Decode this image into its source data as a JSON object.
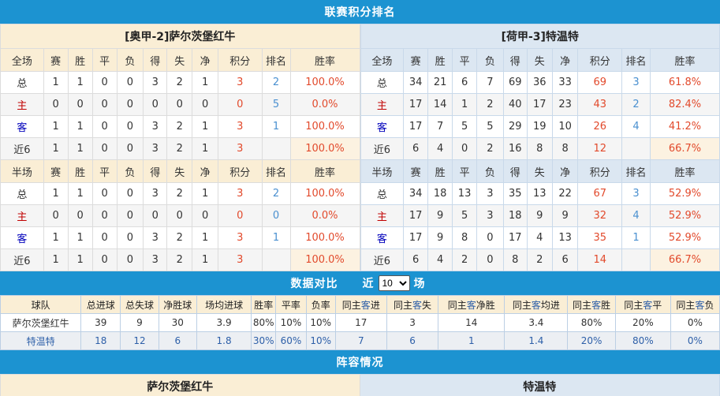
{
  "sections": {
    "ranking": "联赛积分排名"
  },
  "teams": {
    "home": {
      "title": "[奥甲-2]萨尔茨堡红牛",
      "name": "萨尔茨堡红牛",
      "league": "奥甲",
      "league_rank": "2"
    },
    "away": {
      "title": "[荷甲-3]特温特",
      "name": "特温特",
      "league": "荷甲",
      "league_rank": "3"
    }
  },
  "standings": {
    "columns": [
      "赛",
      "胜",
      "平",
      "负",
      "得",
      "失",
      "净",
      "积分",
      "排名",
      "胜率"
    ],
    "full_label": "全场",
    "half_label": "半场",
    "home": {
      "full": [
        {
          "label": "总",
          "values": [
            "1",
            "1",
            "0",
            "0",
            "3",
            "2",
            "1",
            "3",
            "2",
            "100.0%"
          ]
        },
        {
          "label": "主",
          "values": [
            "0",
            "0",
            "0",
            "0",
            "0",
            "0",
            "0",
            "0",
            "5",
            "0.0%"
          ]
        },
        {
          "label": "客",
          "values": [
            "1",
            "1",
            "0",
            "0",
            "3",
            "2",
            "1",
            "3",
            "1",
            "100.0%"
          ]
        },
        {
          "label": "近6",
          "values": [
            "1",
            "1",
            "0",
            "0",
            "3",
            "2",
            "1",
            "3",
            "",
            "100.0%"
          ]
        }
      ],
      "half": [
        {
          "label": "总",
          "values": [
            "1",
            "1",
            "0",
            "0",
            "3",
            "2",
            "1",
            "3",
            "2",
            "100.0%"
          ]
        },
        {
          "label": "主",
          "values": [
            "0",
            "0",
            "0",
            "0",
            "0",
            "0",
            "0",
            "0",
            "0",
            "0.0%"
          ]
        },
        {
          "label": "客",
          "values": [
            "1",
            "1",
            "0",
            "0",
            "3",
            "2",
            "1",
            "3",
            "1",
            "100.0%"
          ]
        },
        {
          "label": "近6",
          "values": [
            "1",
            "1",
            "0",
            "0",
            "3",
            "2",
            "1",
            "3",
            "",
            "100.0%"
          ]
        }
      ]
    },
    "away": {
      "full": [
        {
          "label": "总",
          "values": [
            "34",
            "21",
            "6",
            "7",
            "69",
            "36",
            "33",
            "69",
            "3",
            "61.8%"
          ]
        },
        {
          "label": "主",
          "values": [
            "17",
            "14",
            "1",
            "2",
            "40",
            "17",
            "23",
            "43",
            "2",
            "82.4%"
          ]
        },
        {
          "label": "客",
          "values": [
            "17",
            "7",
            "5",
            "5",
            "29",
            "19",
            "10",
            "26",
            "4",
            "41.2%"
          ]
        },
        {
          "label": "近6",
          "values": [
            "6",
            "4",
            "0",
            "2",
            "16",
            "8",
            "8",
            "12",
            "",
            "66.7%"
          ]
        }
      ],
      "half": [
        {
          "label": "总",
          "values": [
            "34",
            "18",
            "13",
            "3",
            "35",
            "13",
            "22",
            "67",
            "3",
            "52.9%"
          ]
        },
        {
          "label": "主",
          "values": [
            "17",
            "9",
            "5",
            "3",
            "18",
            "9",
            "9",
            "32",
            "4",
            "52.9%"
          ]
        },
        {
          "label": "客",
          "values": [
            "17",
            "9",
            "8",
            "0",
            "17",
            "4",
            "13",
            "35",
            "1",
            "52.9%"
          ]
        },
        {
          "label": "近6",
          "values": [
            "6",
            "4",
            "2",
            "0",
            "8",
            "2",
            "6",
            "14",
            "",
            "66.7%"
          ]
        }
      ]
    }
  },
  "compare": {
    "title": "数据对比",
    "recent_label": "近",
    "recent_value": "10",
    "unit": "场",
    "columns": [
      "球队",
      "总进球",
      "总失球",
      "净胜球",
      "场均进球",
      "胜率",
      "平率",
      "负率",
      "同主客进",
      "同主客失",
      "同主客净胜",
      "同主客均进",
      "同主客胜",
      "同主客平",
      "同主客负"
    ],
    "rows": [
      {
        "team": "萨尔茨堡红牛",
        "values": [
          "39",
          "9",
          "30",
          "3.9",
          "80%",
          "10%",
          "10%",
          "17",
          "3",
          "14",
          "3.4",
          "80%",
          "20%",
          "0%"
        ]
      },
      {
        "team": "特温特",
        "values": [
          "18",
          "12",
          "6",
          "1.8",
          "30%",
          "60%",
          "10%",
          "7",
          "6",
          "1",
          "1.4",
          "20%",
          "80%",
          "0%"
        ]
      }
    ]
  },
  "lineup": {
    "title": "阵容情况"
  },
  "colors": {
    "bar_blue": "#1c93d1",
    "home_header_bg": "#faeed5",
    "away_header_bg": "#dce7f2",
    "points_red": "#e24a2c",
    "rank_blue": "#4a90d0",
    "home_label_red": "#c00000",
    "away_label_blue": "#0000bb",
    "away_row_blue": "#2d5fa8"
  }
}
